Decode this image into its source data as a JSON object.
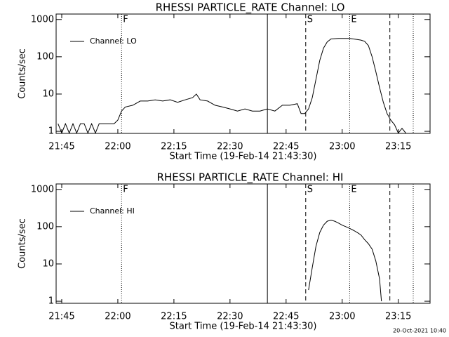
{
  "chart_data": [
    {
      "type": "line",
      "title": "RHESSI PARTICLE_RATE Channel: LO",
      "xlabel": "Start Time (19-Feb-14 21:43:30)",
      "ylabel": "Counts/sec",
      "log_y": true,
      "legend": "upper left",
      "xlim": [
        "21:43:30",
        "23:23:30"
      ],
      "ylim": [
        0.88,
        1400
      ],
      "xticks": [
        "21:45",
        "22:00",
        "22:15",
        "22:30",
        "22:45",
        "23:00",
        "23:15"
      ],
      "yticks": [
        1,
        10,
        100,
        1000
      ],
      "x": [
        "21:44",
        "21:45",
        "21:46",
        "21:47",
        "21:48",
        "21:49",
        "21:50",
        "21:51",
        "21:52",
        "21:53",
        "21:54",
        "21:55",
        "21:56",
        "21:57",
        "21:58",
        "21:59",
        "22:00",
        "22:01",
        "22:02",
        "22:04",
        "22:06",
        "22:08",
        "22:10",
        "22:12",
        "22:14",
        "22:16",
        "22:18",
        "22:20",
        "22:21",
        "22:22",
        "22:24",
        "22:26",
        "22:28",
        "22:30",
        "22:32",
        "22:34",
        "22:36",
        "22:38",
        "22:40",
        "22:42",
        "22:44",
        "22:46",
        "22:48",
        "22:49",
        "22:50",
        "22:51",
        "22:52",
        "22:53",
        "22:54",
        "22:55",
        "22:56",
        "22:57",
        "22:59",
        "23:02",
        "23:04",
        "23:05",
        "23:06",
        "23:07",
        "23:08",
        "23:09",
        "23:10",
        "23:11",
        "23:12",
        "23:13",
        "23:14",
        "23:15",
        "23:16",
        "23:17"
      ],
      "series": [
        {
          "name": "Channel: LO",
          "color": "#000000",
          "values": [
            1.6,
            0.9,
            1.6,
            0.9,
            1.6,
            0.9,
            1.6,
            1.6,
            0.9,
            1.6,
            0.9,
            1.6,
            1.6,
            1.6,
            1.6,
            1.6,
            2,
            3.5,
            4.5,
            5,
            6.5,
            6.5,
            7,
            6.5,
            7,
            6,
            7,
            8,
            10,
            7,
            6.5,
            5,
            4.5,
            4,
            3.5,
            4,
            3.5,
            3.5,
            4,
            3.5,
            5,
            5,
            5.5,
            3,
            3,
            4,
            8,
            25,
            80,
            170,
            250,
            300,
            310,
            310,
            290,
            280,
            260,
            200,
            100,
            40,
            15,
            6,
            3,
            2,
            1.5,
            0.9,
            1.2,
            0.9
          ]
        }
      ],
      "markers": [
        {
          "x": "22:01",
          "label": "F",
          "style": "dotted"
        },
        {
          "x": "22:40",
          "style": "solid"
        },
        {
          "x": "22:50:15",
          "label": "S",
          "style": "dashed"
        },
        {
          "x": "23:02",
          "label": "E",
          "style": "dotted"
        },
        {
          "x": "23:12:45",
          "style": "dashed"
        },
        {
          "x": "23:19",
          "style": "dotted"
        }
      ]
    },
    {
      "type": "line",
      "title": "RHESSI PARTICLE_RATE Channel: HI",
      "xlabel": "Start Time (19-Feb-14 21:43:30)",
      "ylabel": "Counts/sec",
      "log_y": true,
      "legend": "upper left",
      "xlim": [
        "21:43:30",
        "23:23:30"
      ],
      "ylim": [
        0.88,
        1400
      ],
      "xticks": [
        "21:45",
        "22:00",
        "22:15",
        "22:30",
        "22:45",
        "23:00",
        "23:15"
      ],
      "yticks": [
        1,
        10,
        100,
        1000
      ],
      "x": [
        "22:51",
        "22:52",
        "22:53",
        "22:54",
        "22:55",
        "22:56",
        "22:57",
        "22:58",
        "22:59",
        "23:00",
        "23:01",
        "23:02",
        "23:03",
        "23:04",
        "23:05",
        "23:06",
        "23:07",
        "23:08",
        "23:09",
        "23:10",
        "23:10:30"
      ],
      "series": [
        {
          "name": "Channel: HI",
          "color": "#000000",
          "values": [
            2,
            8,
            30,
            70,
            110,
            140,
            150,
            140,
            125,
            110,
            100,
            90,
            80,
            70,
            60,
            45,
            35,
            25,
            12,
            4,
            1
          ]
        }
      ],
      "markers": [
        {
          "x": "22:01",
          "label": "F",
          "style": "dotted"
        },
        {
          "x": "22:40",
          "style": "solid"
        },
        {
          "x": "22:50:15",
          "label": "S",
          "style": "dashed"
        },
        {
          "x": "23:02",
          "label": "E",
          "style": "dotted"
        },
        {
          "x": "23:12:45",
          "style": "dashed"
        },
        {
          "x": "23:19",
          "style": "dotted"
        }
      ]
    }
  ],
  "footer": "20-Oct-2021 10:40"
}
